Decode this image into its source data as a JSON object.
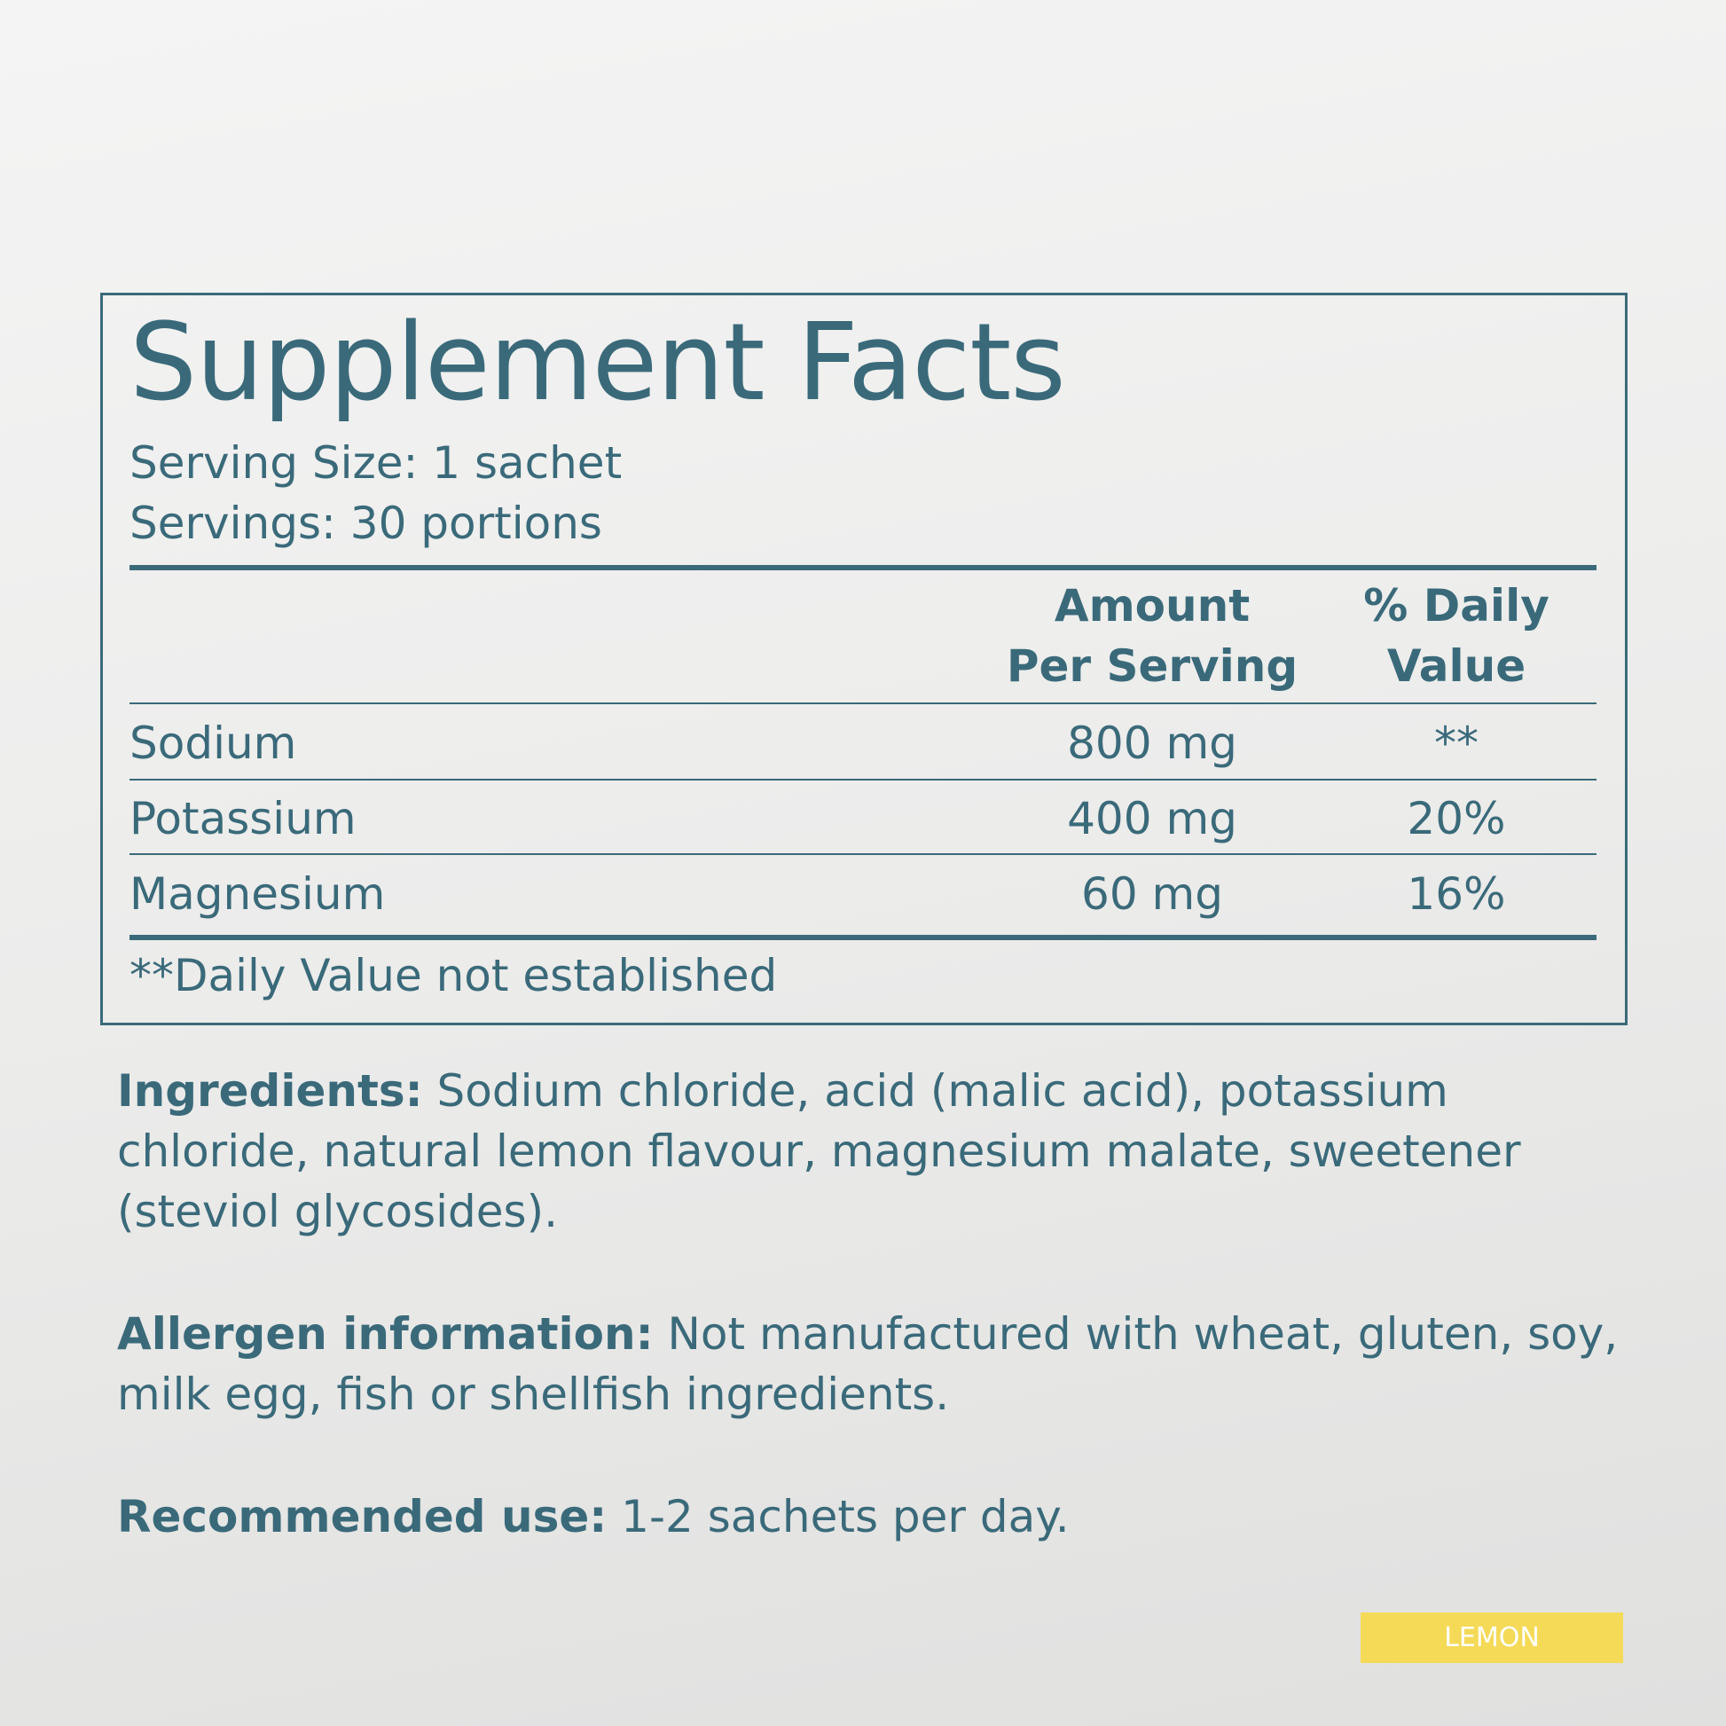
{
  "facts": {
    "title": "Supplement Facts",
    "serving_size": "Serving Size: 1 sachet",
    "servings": "Servings: 30 portions",
    "header": {
      "amount_1": "Amount",
      "amount_2": "Per Serving",
      "dv_1": "% Daily",
      "dv_2": "Value"
    },
    "rows": [
      {
        "name": "Sodium",
        "amount": "800 mg",
        "dv": "**"
      },
      {
        "name": "Potassium",
        "amount": "400 mg",
        "dv": "20%"
      },
      {
        "name": "Magnesium",
        "amount": "60 mg",
        "dv": "16%"
      }
    ],
    "footnote": "**Daily Value not established"
  },
  "ingredients": {
    "label": "Ingredients:",
    "text": " Sodium chloride, acid (malic acid), potassium chloride, natural lemon flavour, magnesium malate, sweetener (steviol glycosides)."
  },
  "allergen": {
    "label": "Allergen information:",
    "text": " Not manufactured with wheat, gluten, soy, milk egg, fish or shellfish ingredients."
  },
  "recommended": {
    "label": "Recommended use:",
    "text": " 1-2 sachets per day."
  },
  "badge": {
    "label": "LEMON",
    "color": "#f5da58"
  },
  "colors": {
    "text": "#3a6a7a"
  }
}
